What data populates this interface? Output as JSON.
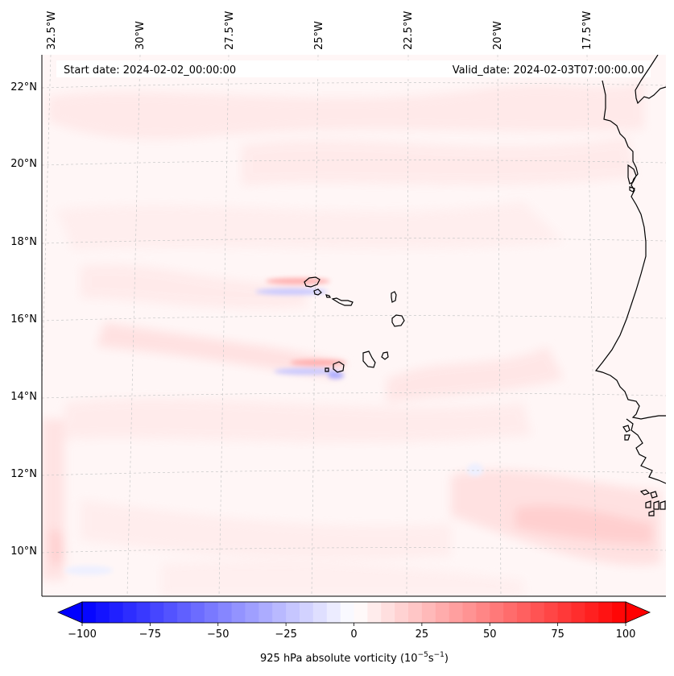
{
  "header": {
    "start_date": "Start date: 2024-02-02_00:00:00",
    "valid_date": "Valid_date: 2024-02-03T07:00:00.00"
  },
  "longitude_labels": [
    "32.5°W",
    "30°W",
    "27.5°W",
    "25°W",
    "22.5°W",
    "20°W",
    "17.5°W"
  ],
  "latitude_labels": [
    "22°N",
    "20°N",
    "18°N",
    "16°N",
    "14°N",
    "12°N",
    "10°N"
  ],
  "colorbar": {
    "label_prefix": "925 hPa absolute vorticity (10",
    "label_exp1": "−5",
    "label_mid": "s",
    "label_exp2": "−1",
    "label_suffix": ")",
    "ticks": [
      "−100",
      "−75",
      "−50",
      "−25",
      "0",
      "25",
      "50",
      "75",
      "100"
    ],
    "min": -100,
    "max": 100,
    "step": 5,
    "color_negative": "#0000ff",
    "color_neutral": "#ffffff",
    "color_positive": "#ff0000"
  },
  "map_colors": {
    "ocean_background": "#fff6f6",
    "coastline": "#000000",
    "gridline": "#c8c8c8"
  }
}
